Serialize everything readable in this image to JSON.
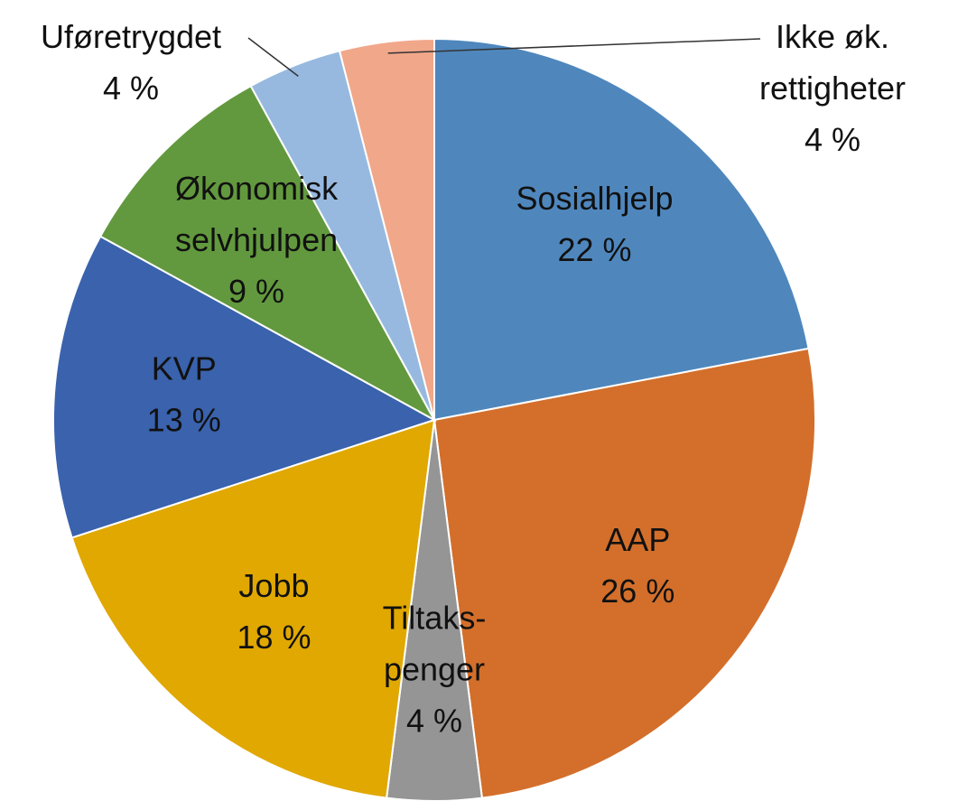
{
  "chart_data": {
    "type": "pie",
    "categories": [
      [
        "Sosialhjelp"
      ],
      [
        "AAP"
      ],
      [
        "Tiltaks-",
        "penger"
      ],
      [
        "Jobb"
      ],
      [
        "KVP"
      ],
      [
        "Økonomisk",
        "selvhjulpen"
      ],
      [
        "Uføretrygdet"
      ],
      [
        "Ikke øk.",
        "rettigheter"
      ]
    ],
    "values": [
      22,
      26,
      4,
      18,
      13,
      9,
      4,
      4
    ],
    "value_labels": [
      "22 %",
      "26 %",
      "4 %",
      "18 %",
      "13 %",
      "9 %",
      "4 %",
      "4 %"
    ],
    "colors": [
      "#4f87bd",
      "#d36f2b",
      "#959595",
      "#e0a800",
      "#3a62ad",
      "#62993e",
      "#97b9e0",
      "#f1a78a"
    ]
  }
}
